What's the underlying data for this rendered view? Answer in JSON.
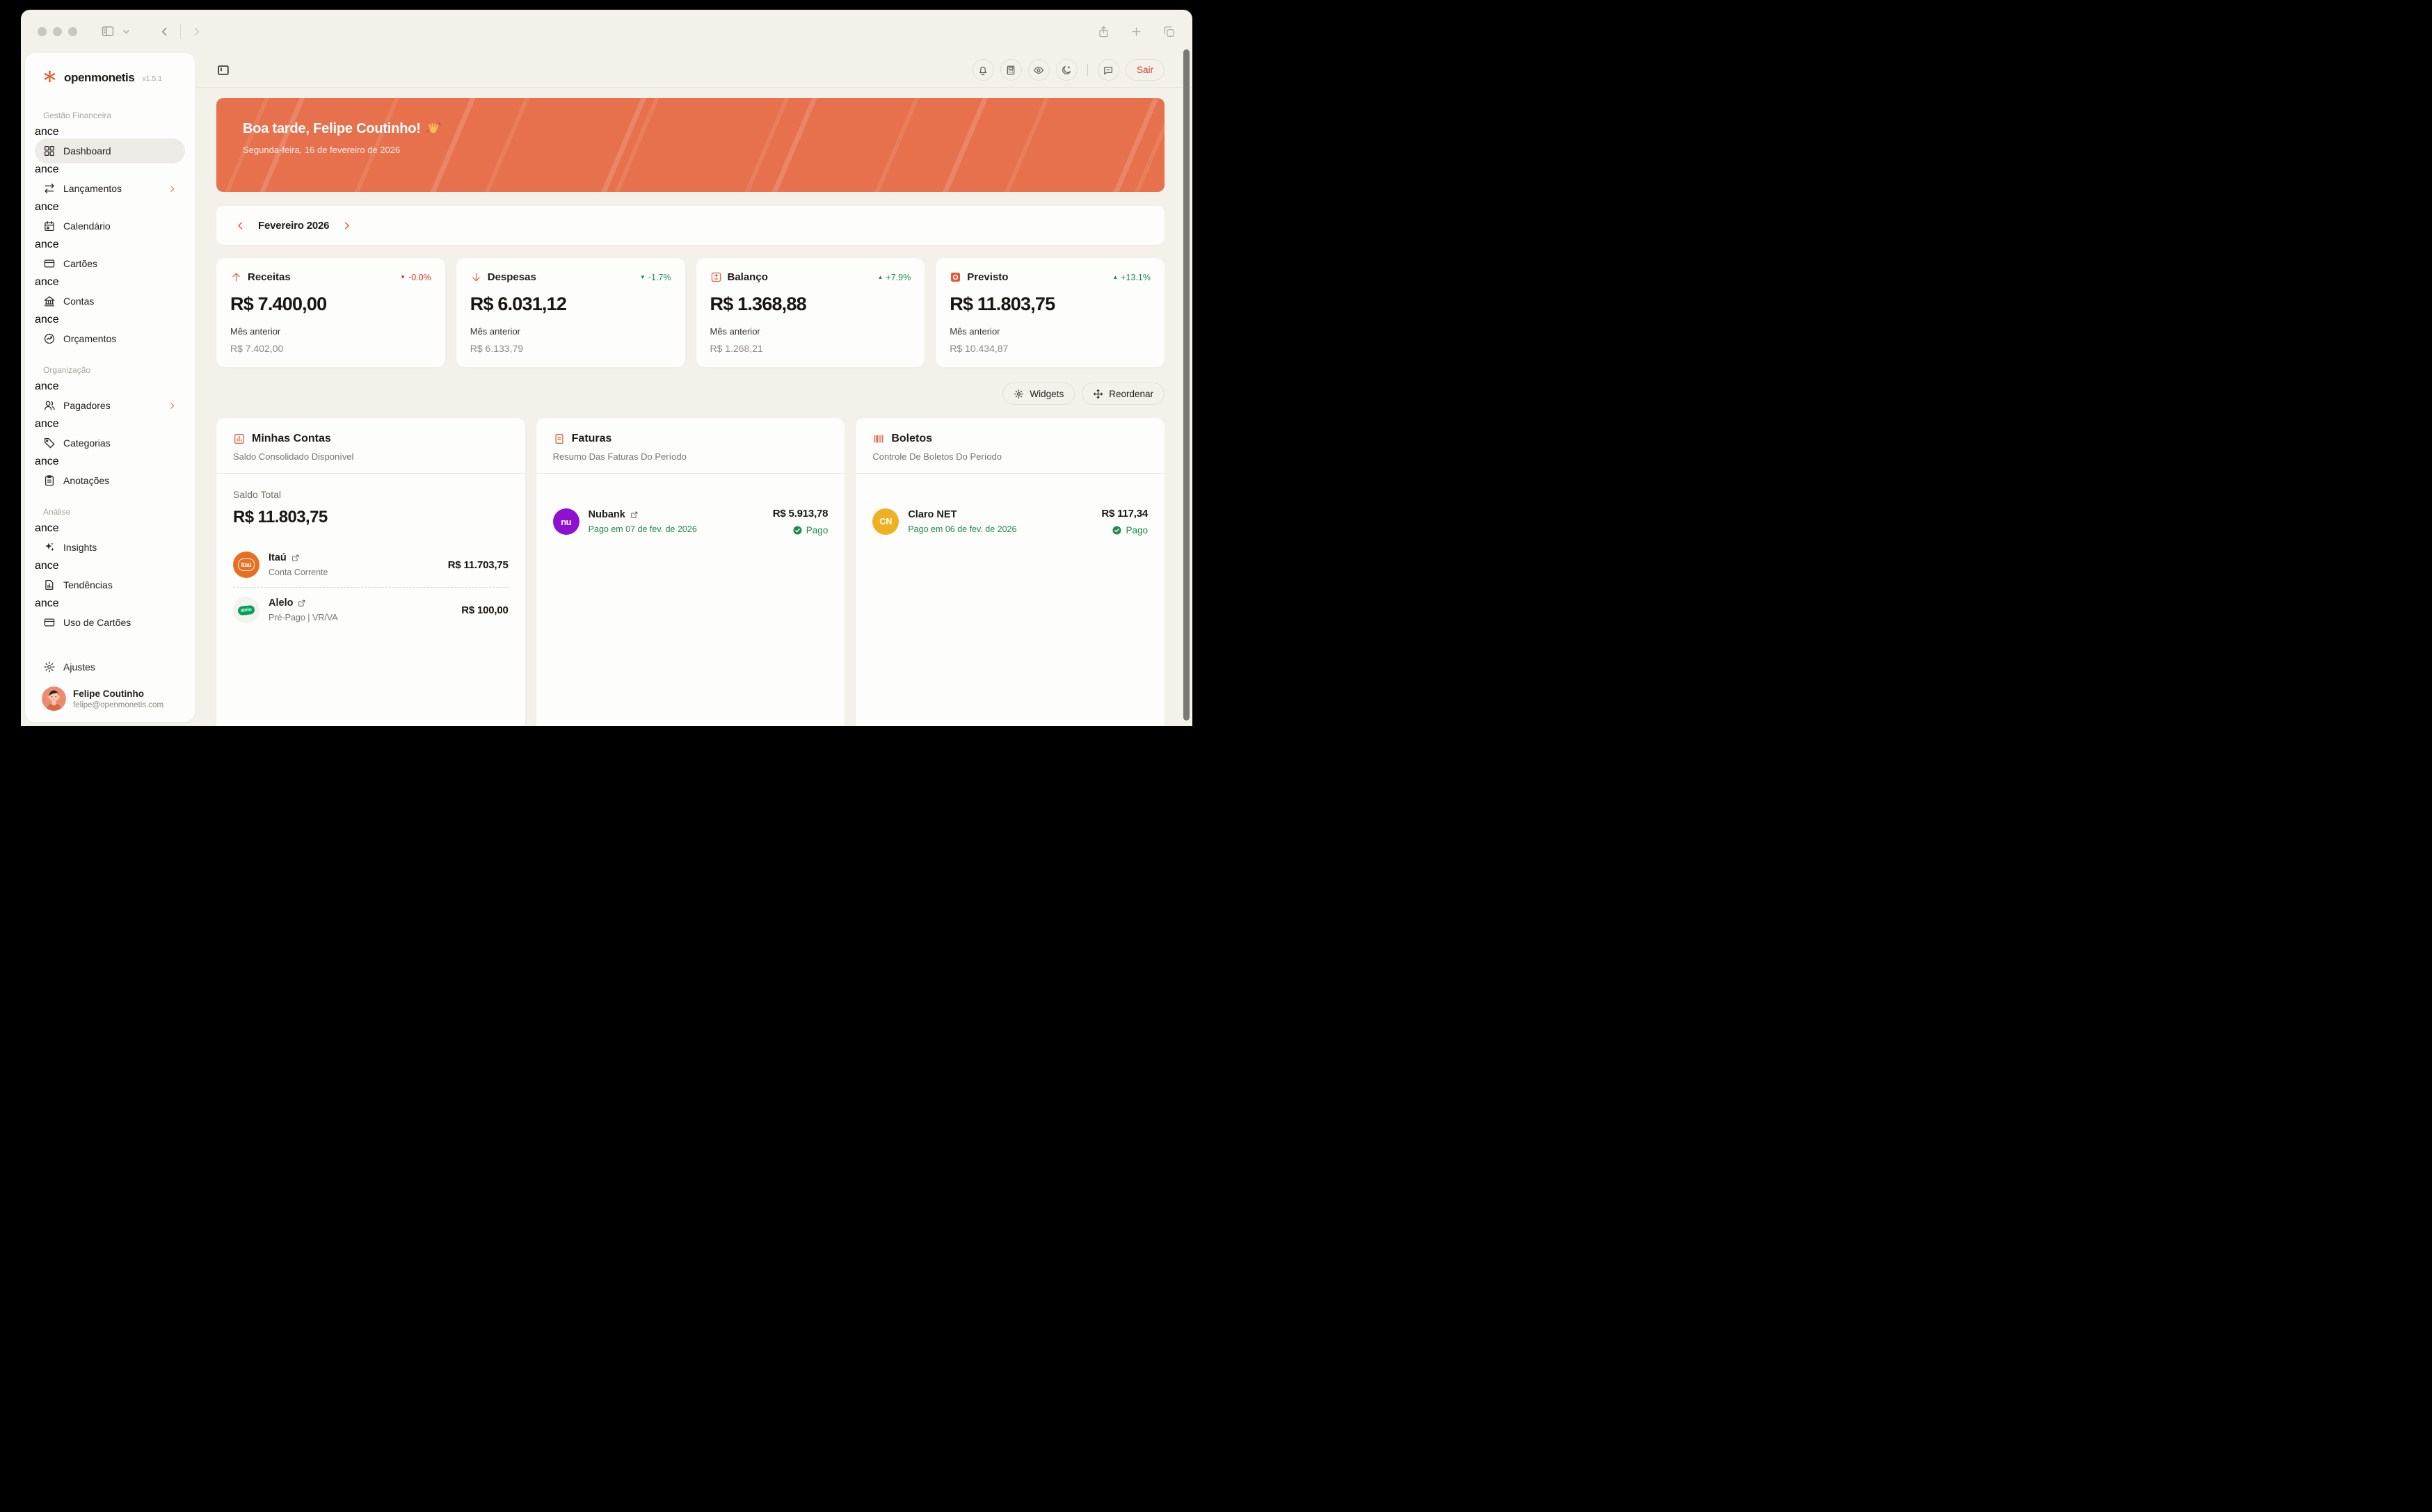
{
  "app": {
    "name": "openmonetis",
    "version": "v1.5.1"
  },
  "colors": {
    "accent": "#dd5f38",
    "banner": "#e7714d",
    "danger": "#d23a2b",
    "success": "#1d8a4a"
  },
  "sidebar": {
    "sections": [
      {
        "label": "Gestão Financeira",
        "items": [
          {
            "label": "Dashboard",
            "icon": "dashboard",
            "active": true
          },
          {
            "label": "Lançamentos",
            "icon": "transfers",
            "chevron": true
          },
          {
            "label": "Calendário",
            "icon": "calendar"
          },
          {
            "label": "Cartões",
            "icon": "card"
          },
          {
            "label": "Contas",
            "icon": "bank"
          },
          {
            "label": "Orçamentos",
            "icon": "budget"
          }
        ]
      },
      {
        "label": "Organização",
        "items": [
          {
            "label": "Pagadores",
            "icon": "users",
            "chevron": true
          },
          {
            "label": "Categorias",
            "icon": "tag"
          },
          {
            "label": "Anotações",
            "icon": "clipboard"
          }
        ]
      },
      {
        "label": "Análise",
        "items": [
          {
            "label": "Insights",
            "icon": "sparkles"
          },
          {
            "label": "Tendências",
            "icon": "file-chart"
          },
          {
            "label": "Uso de Cartões",
            "icon": "card"
          }
        ]
      }
    ],
    "footer": {
      "settings_label": "Ajustes",
      "user_name": "Felipe Coutinho",
      "user_email": "felipe@openmonetis.com"
    }
  },
  "header": {
    "buttons": [
      "bell",
      "calculator",
      "eye",
      "moon",
      "|",
      "chat"
    ],
    "logout_label": "Sair"
  },
  "banner": {
    "greeting": "Boa tarde, Felipe Coutinho!",
    "wave_emoji": "👋",
    "date": "Segunda-feira, 16 de fevereiro de 2026"
  },
  "period": {
    "label": "Fevereiro 2026"
  },
  "stats": [
    {
      "title": "Receitas",
      "icon": "arrow-up",
      "change": "-0.0%",
      "direction": "down",
      "tone": "red",
      "value": "R$ 7.400,00",
      "previous_label": "Mês anterior",
      "previous_value": "R$ 7.402,00"
    },
    {
      "title": "Despesas",
      "icon": "arrow-down",
      "change": "-1.7%",
      "direction": "down",
      "tone": "green",
      "value": "R$ 6.031,12",
      "previous_label": "Mês anterior",
      "previous_value": "R$ 6.133,79"
    },
    {
      "title": "Balanço",
      "icon": "diff",
      "change": "+7.9%",
      "direction": "up",
      "tone": "green",
      "value": "R$ 1.368,88",
      "previous_label": "Mês anterior",
      "previous_value": "R$ 1.268,21"
    },
    {
      "title": "Previsto",
      "icon": "target",
      "change": "+13.1%",
      "direction": "up",
      "tone": "green",
      "value": "R$ 11.803,75",
      "previous_label": "Mês anterior",
      "previous_value": "R$ 10.434,87"
    }
  ],
  "actions": {
    "widgets_label": "Widgets",
    "reorder_label": "Reordenar"
  },
  "widgets": [
    {
      "title": "Minhas Contas",
      "icon": "bar-chart",
      "subtitle": "Saldo Consolidado Disponível",
      "summary": {
        "label": "Saldo Total",
        "value": "R$ 11.803,75"
      },
      "rows": [
        {
          "logo": "itau",
          "name": "Itaú",
          "external_link": true,
          "description": "Conta Corrente",
          "description_tone": "gray",
          "amount": "R$ 11.703,75"
        },
        {
          "logo": "alelo",
          "name": "Alelo",
          "external_link": true,
          "description": "Pré-Pago | VR/VA",
          "description_tone": "gray",
          "amount": "R$ 100,00"
        }
      ]
    },
    {
      "title": "Faturas",
      "icon": "receipt",
      "subtitle": "Resumo Das Faturas Do Período",
      "rows": [
        {
          "logo": "nubank",
          "name": "Nubank",
          "external_link": true,
          "description": "Pago em 07 de fev. de 2026",
          "description_tone": "green",
          "amount": "R$ 5.913,78",
          "status": "Pago"
        }
      ]
    },
    {
      "title": "Boletos",
      "icon": "barcode",
      "subtitle": "Controle De Boletos Do Período",
      "rows": [
        {
          "logo": "claro",
          "name": "Claro NET",
          "external_link": false,
          "description": "Pago em 06 de fev. de 2026",
          "description_tone": "green",
          "amount": "R$ 117,34",
          "status": "Pago"
        }
      ]
    }
  ]
}
